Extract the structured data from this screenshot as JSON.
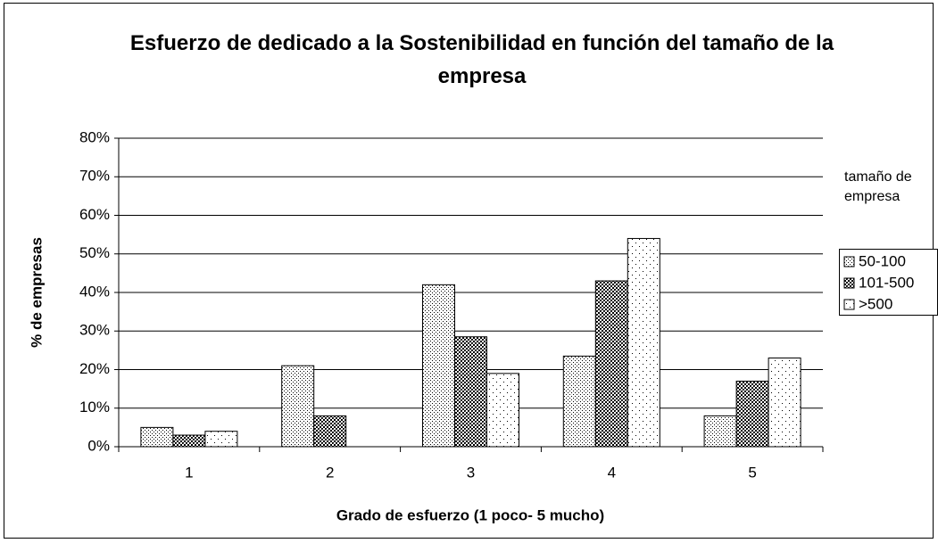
{
  "chart_data": {
    "type": "bar",
    "title": "Esfuerzo de dedicado a la Sostenibilidad en función del tamaño de la empresa",
    "x_label": "Grado de esfuerzo (1 poco- 5 mucho)",
    "y_label": "% de empresas",
    "legend_title": "tamaño de empresa",
    "legend": "right",
    "grid": true,
    "categories": [
      "1",
      "2",
      "3",
      "4",
      "5"
    ],
    "series": [
      {
        "name": "50-100",
        "pattern": "dense-dots",
        "color": "#000000",
        "values": [
          5,
          21,
          42,
          23.5,
          8
        ]
      },
      {
        "name": "101-500",
        "pattern": "crosshatch",
        "color": "#000000",
        "values": [
          3,
          8,
          28.5,
          43,
          17
        ]
      },
      {
        "name": ">500",
        "pattern": "sparse-dots",
        "color": "#000000",
        "values": [
          4,
          0,
          19,
          54,
          23
        ]
      }
    ],
    "ylim": [
      0,
      80
    ],
    "yticks": [
      {
        "value": 0,
        "label": "0%"
      },
      {
        "value": 10,
        "label": "10%"
      },
      {
        "value": 20,
        "label": "20%"
      },
      {
        "value": 30,
        "label": "30%"
      },
      {
        "value": 40,
        "label": "40%"
      },
      {
        "value": 50,
        "label": "50%"
      },
      {
        "value": 60,
        "label": "60%"
      },
      {
        "value": 70,
        "label": "70%"
      },
      {
        "value": 80,
        "label": "80%"
      }
    ]
  }
}
